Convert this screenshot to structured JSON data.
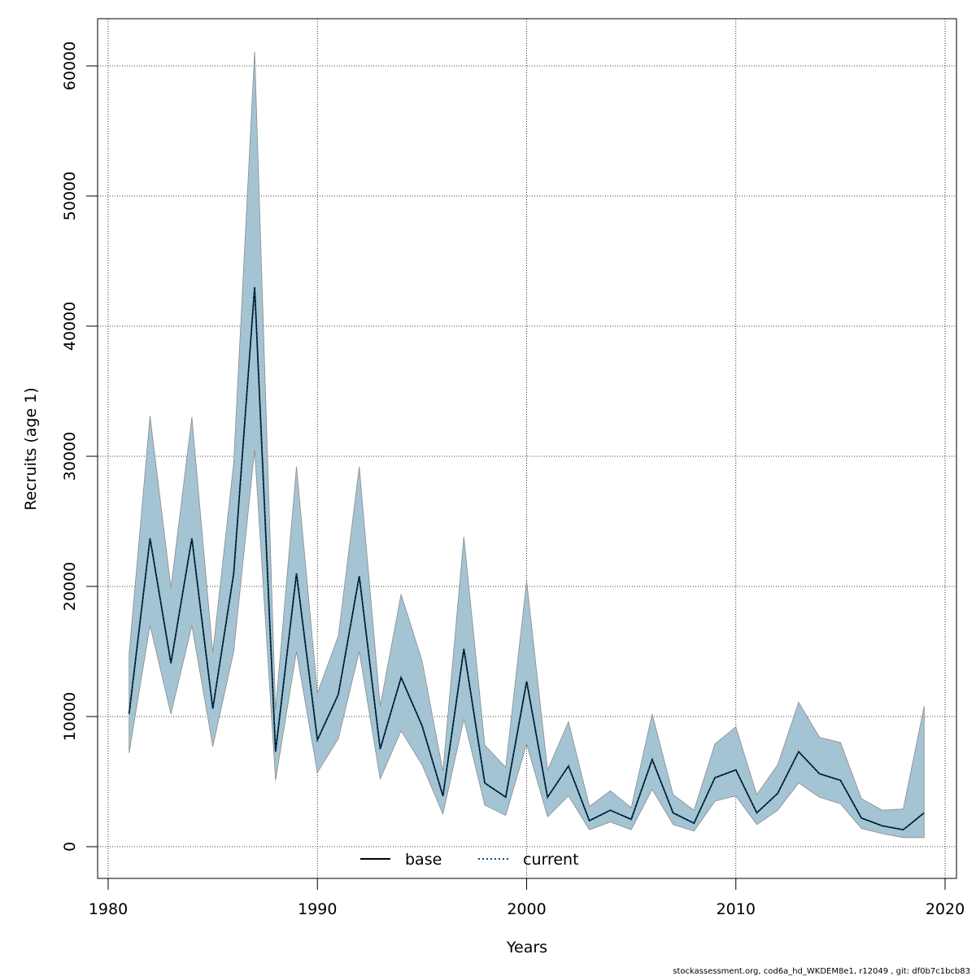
{
  "chart_data": {
    "type": "line",
    "xlabel": "Years",
    "ylabel": "Recruits (age 1)",
    "xlim": [
      1980,
      2020
    ],
    "ylim": [
      0,
      60000
    ],
    "xticks": [
      1980,
      1990,
      2000,
      2010,
      2020
    ],
    "yticks": [
      0,
      10000,
      20000,
      30000,
      40000,
      50000,
      60000
    ],
    "grid": true,
    "legend_position": "bottom-center",
    "colors": {
      "band": "#a4c4d4",
      "band_edge": "#8a8a8a",
      "base": "#000000",
      "current": "#004d7a"
    },
    "x": [
      1981,
      1982,
      1983,
      1984,
      1985,
      1986,
      1987,
      1988,
      1989,
      1990,
      1991,
      1992,
      1993,
      1994,
      1995,
      1996,
      1997,
      1998,
      1999,
      2000,
      2001,
      2002,
      2003,
      2004,
      2005,
      2006,
      2007,
      2008,
      2009,
      2010,
      2011,
      2012,
      2013,
      2014,
      2015,
      2016,
      2017,
      2018,
      2019
    ],
    "series": [
      {
        "name": "base",
        "style": "solid",
        "values": [
          10200,
          23700,
          14100,
          23700,
          10600,
          21000,
          43000,
          7300,
          21000,
          8200,
          11700,
          20800,
          7500,
          13000,
          9300,
          3900,
          15200,
          4900,
          3800,
          12700,
          3800,
          6200,
          2000,
          2800,
          2100,
          6700,
          2600,
          1800,
          5300,
          5900,
          2600,
          4100,
          7300,
          5600,
          5100,
          2200,
          1600,
          1300,
          2600
        ]
      },
      {
        "name": "current",
        "style": "dotted",
        "values": [
          10200,
          23700,
          14100,
          23700,
          10600,
          21000,
          43000,
          7300,
          21000,
          8200,
          11700,
          20800,
          7500,
          13000,
          9300,
          3900,
          15200,
          4900,
          3800,
          12700,
          3800,
          6200,
          2000,
          2800,
          2100,
          6700,
          2600,
          1800,
          5300,
          5900,
          2600,
          4100,
          7300,
          5600,
          5100,
          2200,
          1600,
          1300,
          2600
        ]
      }
    ],
    "confidence_band": {
      "lower": [
        7200,
        17000,
        10200,
        17000,
        7700,
        15000,
        30500,
        5100,
        15000,
        5700,
        8300,
        15000,
        5200,
        8900,
        6300,
        2500,
        9800,
        3200,
        2400,
        7900,
        2300,
        3900,
        1300,
        1900,
        1300,
        4400,
        1700,
        1200,
        3500,
        3900,
        1700,
        2800,
        4900,
        3800,
        3300,
        1400,
        1000,
        700,
        700
      ],
      "upper": [
        14800,
        33100,
        19900,
        33000,
        14900,
        29500,
        61100,
        10500,
        29200,
        11800,
        16200,
        29200,
        10800,
        19400,
        14300,
        5800,
        23800,
        7800,
        6100,
        20400,
        5900,
        9600,
        3100,
        4300,
        3000,
        10200,
        4000,
        2800,
        7900,
        9200,
        4000,
        6300,
        11100,
        8400,
        8000,
        3700,
        2800,
        2900,
        10800
      ]
    },
    "footer": "stockassessment.org, cod6a_hd_WKDEM8e1, r12049 , git: df0b7c1bcb83"
  }
}
